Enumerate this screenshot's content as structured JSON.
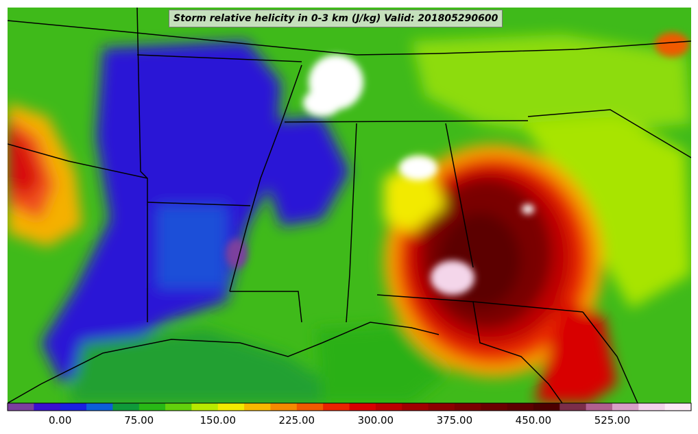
{
  "title": "Storm relative helicity in 0-3 km (J/kg) Valid: 201805290600",
  "colorbar": {
    "tick_labels": [
      "0.00",
      "75.00",
      "150.00",
      "225.00",
      "300.00",
      "375.00",
      "450.00",
      "525.00"
    ],
    "tick_values": [
      0,
      75,
      150,
      225,
      300,
      375,
      450,
      525
    ],
    "range": [
      -50,
      600
    ],
    "step": 25,
    "colors": [
      "#7b3f9e",
      "#3a0fd0",
      "#1a20e0",
      "#0c5fd8",
      "#0f9a3a",
      "#28b816",
      "#62d10c",
      "#b7ea00",
      "#f2ea00",
      "#f7b800",
      "#f58a00",
      "#f05a00",
      "#ea2400",
      "#d80000",
      "#bb0000",
      "#a00000",
      "#8c0000",
      "#7a0000",
      "#6a0000",
      "#5c0000",
      "#4c0000",
      "#7b2e4a",
      "#b06090",
      "#d8a0c8",
      "#f2d2ea",
      "#fbeaf6"
    ]
  }
}
